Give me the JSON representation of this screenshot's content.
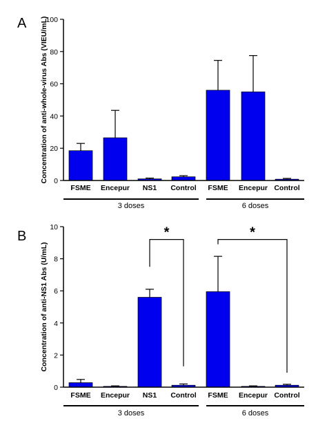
{
  "chart_data": [
    {
      "panel": "A",
      "type": "bar",
      "ylabel": "Concentration of anti-whole-virus Abs (VIEU/mL)",
      "ylim": [
        0,
        100
      ],
      "yticks": [
        0,
        20,
        40,
        60,
        80,
        100
      ],
      "categories": [
        "FSME",
        "Encepur",
        "NS1",
        "Control",
        "FSME",
        "Encepur",
        "Control"
      ],
      "values": [
        18.5,
        26.5,
        1.0,
        2.3,
        56,
        55,
        0.8
      ],
      "error_upper": [
        23,
        43.5,
        1.5,
        3.0,
        74.5,
        77.5,
        1.3
      ],
      "groups": [
        {
          "label": "3 doses",
          "size": 4
        },
        {
          "label": "6 doses",
          "size": 3
        }
      ],
      "bar_color": "#0000ee",
      "significance": []
    },
    {
      "panel": "B",
      "type": "bar",
      "ylabel": "Concentration of anti-NS1 Abs (U/mL)",
      "ylim": [
        0,
        10
      ],
      "yticks": [
        0,
        2,
        4,
        6,
        8,
        10
      ],
      "categories": [
        "FSME",
        "Encepur",
        "NS1",
        "Control",
        "FSME",
        "Encepur",
        "Control"
      ],
      "values": [
        0.28,
        0.05,
        5.6,
        0.12,
        5.95,
        0.05,
        0.12
      ],
      "error_upper": [
        0.48,
        0.08,
        6.1,
        0.2,
        8.15,
        0.08,
        0.18
      ],
      "groups": [
        {
          "label": "3 doses",
          "size": 4
        },
        {
          "label": "6 doses",
          "size": 3
        }
      ],
      "bar_color": "#0000ee",
      "significance": [
        {
          "from": 2,
          "to": 3,
          "label": "*",
          "level": 9.2,
          "end_levels": [
            7.5,
            1.3
          ]
        },
        {
          "from": 4,
          "to": 6,
          "label": "*",
          "level": 9.2,
          "end_levels": [
            8.9,
            0.9
          ]
        }
      ]
    }
  ]
}
